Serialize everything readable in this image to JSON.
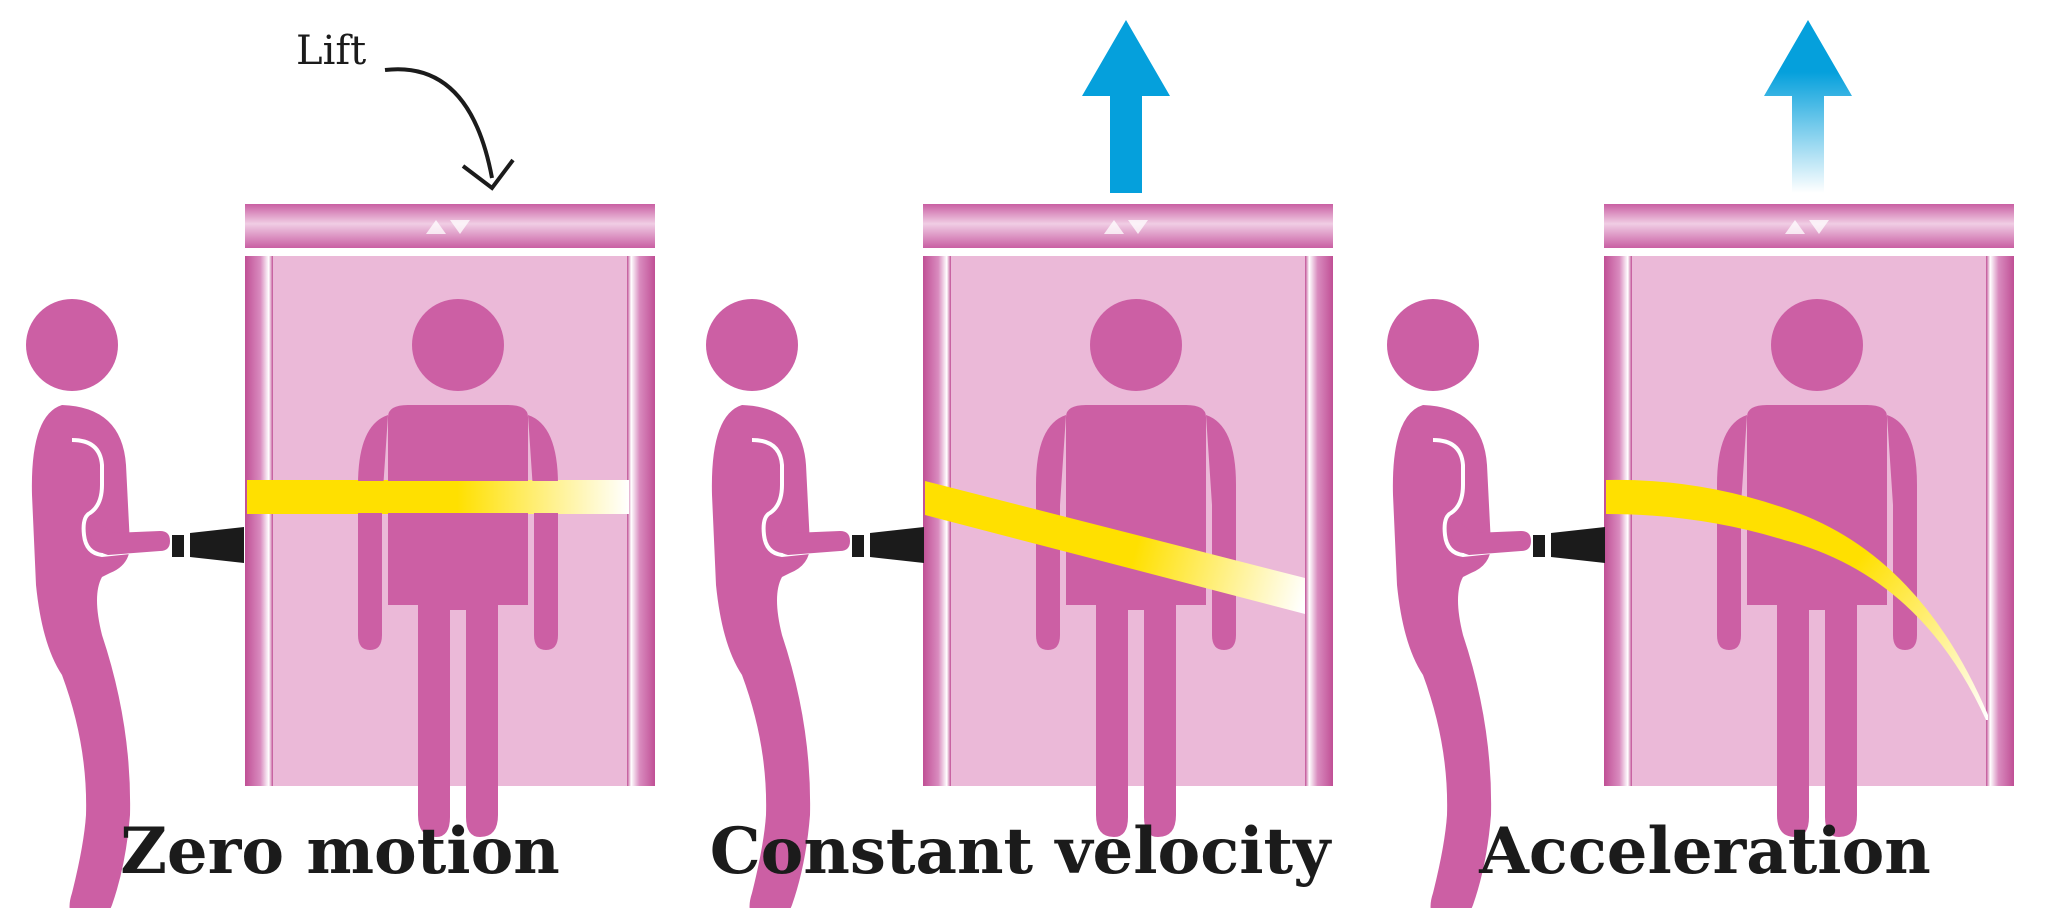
{
  "annotation": {
    "lift_label": "Lift"
  },
  "panels": [
    {
      "caption": "Zero motion",
      "beam": "straight",
      "lift_motion": "none"
    },
    {
      "caption": "Constant velocity",
      "beam": "slanted",
      "lift_motion": "up-solid-arrow"
    },
    {
      "caption": "Acceleration",
      "beam": "curved",
      "lift_motion": "up-fading-arrow"
    }
  ],
  "colors": {
    "figure": "#cc5fa4",
    "lift_wall": "#ebb9d8",
    "lift_frame": "#d17ab4",
    "beam": "#ffe000",
    "arrow": "#05a0dc",
    "torch": "#1b1b1b",
    "text": "#1b1b1b"
  },
  "icons": {
    "lift_indicator": "up-down-triangles-icon",
    "motion_arrow": "up-arrow-icon",
    "label_pointer": "curved-arrow-icon"
  }
}
